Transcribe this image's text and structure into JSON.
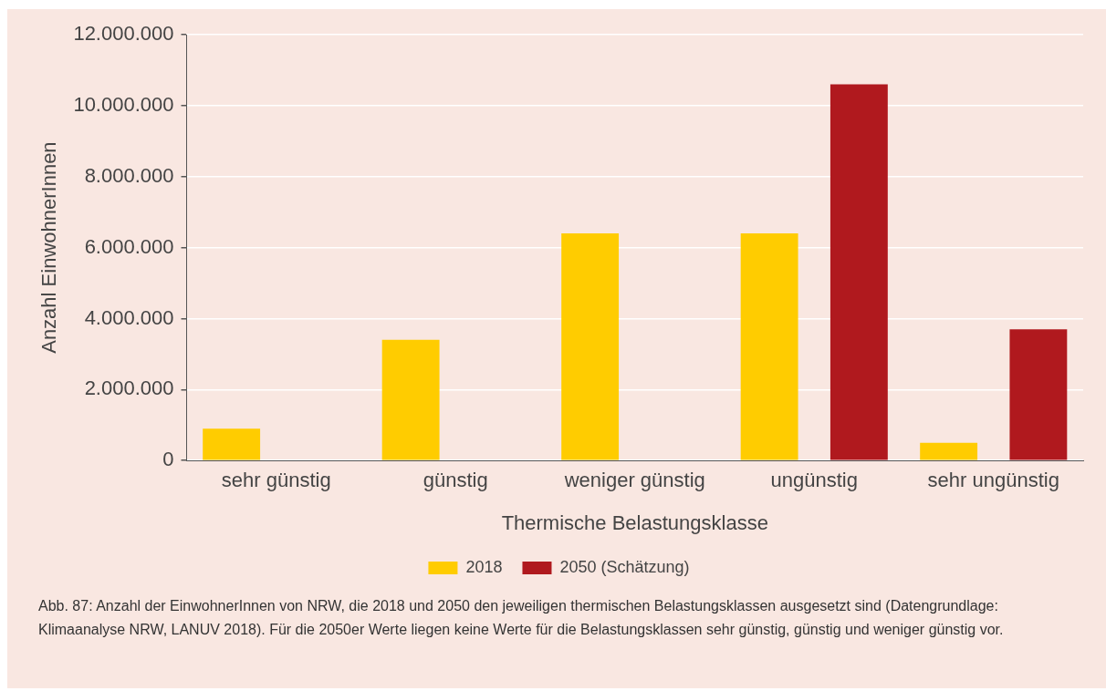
{
  "chart_data": {
    "type": "bar",
    "xlabel": "Thermische Belastungsklasse",
    "ylabel": "Anzahl EinwohnerInnen",
    "categories": [
      "sehr günstig",
      "günstig",
      "weniger günstig",
      "ungünstig",
      "sehr ungünstig"
    ],
    "series": [
      {
        "name": "2018",
        "color": "#ffcc00",
        "values": [
          900000,
          3400000,
          6400000,
          6400000,
          500000
        ]
      },
      {
        "name": "2050 (Schätzung)",
        "color": "#b0191e",
        "values": [
          null,
          null,
          null,
          10600000,
          3700000
        ]
      }
    ],
    "ylim": [
      0,
      12000000
    ],
    "yticks": [
      0,
      {
        "value": 2000000,
        "label": "2.000.000"
      },
      {
        "value": 4000000,
        "label": "4.000.000"
      },
      {
        "value": 6000000,
        "label": "6.000.000"
      },
      {
        "value": 8000000,
        "label": "8.000.000"
      },
      {
        "value": 10000000,
        "label": "10.000.000"
      },
      {
        "value": 12000000,
        "label": "12.000.000"
      }
    ],
    "grid": "y",
    "legend": "bottom",
    "annotations": [
      "Abb. 87: Anzahl der EinwohnerInnen von NRW, die 2018 und 2050 den jeweiligen thermischen Belastungsklassen ausgesetzt sind (Datengrundlage: Klimaanalyse NRW, LANUV 2018). Für die 2050er Werte liegen keine Werte für die Belastungsklassen sehr günstig, günstig und weniger günstig vor."
    ]
  }
}
